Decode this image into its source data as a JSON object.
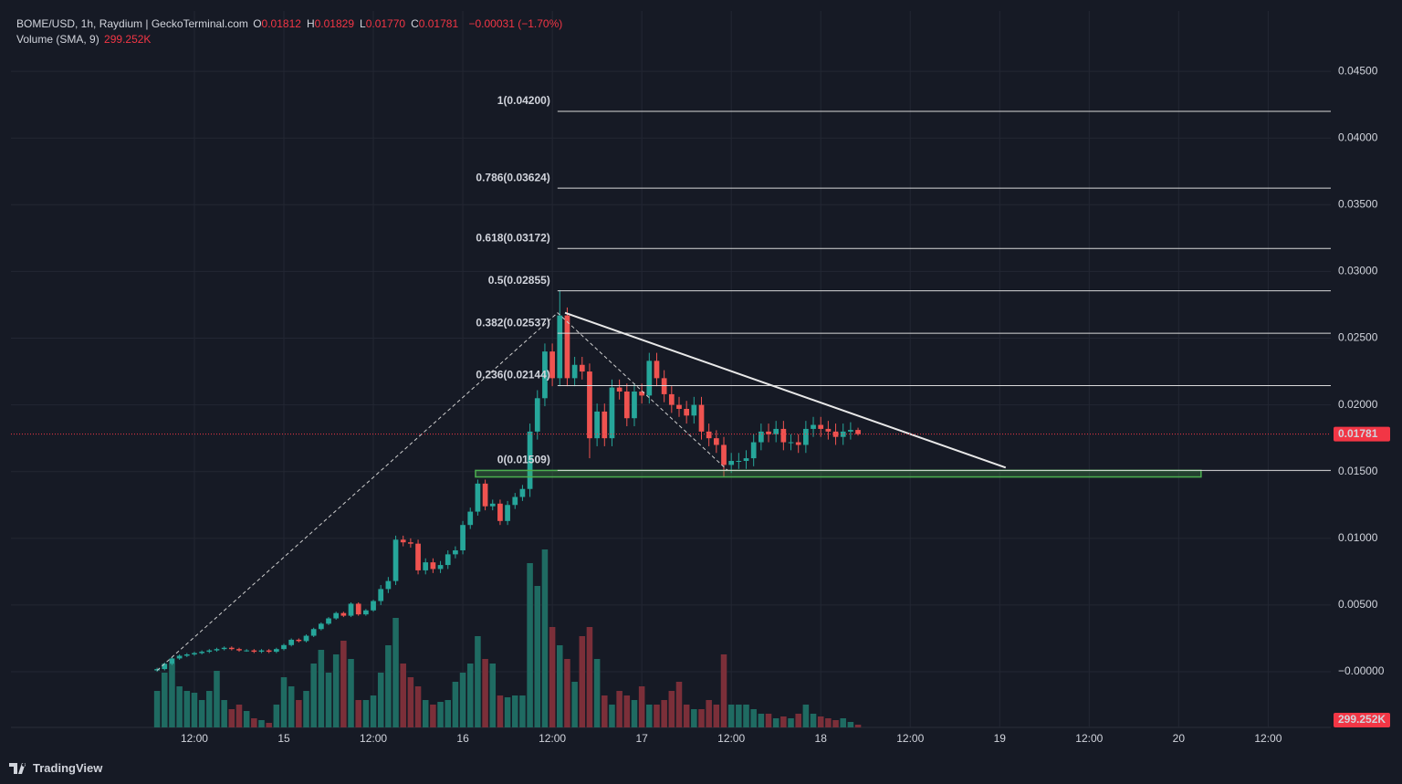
{
  "chart_data": {
    "type": "candlestick",
    "brand": "TradingView",
    "legend": {
      "symbol": "BOME/USD, 1h, Raydium | GeckoTerminal.com",
      "ohlc": [
        {
          "key": "O",
          "text": "0.01812"
        },
        {
          "key": "H",
          "text": "0.01829"
        },
        {
          "key": "L",
          "text": "0.01770"
        },
        {
          "key": "C",
          "text": "0.01781"
        }
      ],
      "change": "−0.00031 (−1.70%)",
      "volume_title": "Volume (SMA, 9)"
    },
    "volume_sma": {
      "value": 299252,
      "label": "299.252K"
    },
    "up_color": "#26a69a",
    "down_color": "#ef5350",
    "volume_up_color": "#1f6b62",
    "volume_down_color": "#7b2f39",
    "grid": true,
    "xlim": [
      -19.6,
      157.4
    ],
    "xticks": [
      {
        "value": 5,
        "label": "12:00"
      },
      {
        "value": 17,
        "label": "15"
      },
      {
        "value": 29,
        "label": "12:00"
      },
      {
        "value": 41,
        "label": "16"
      },
      {
        "value": 53,
        "label": "12:00"
      },
      {
        "value": 65,
        "label": "17"
      },
      {
        "value": 77,
        "label": "12:00"
      },
      {
        "value": 89,
        "label": "18"
      },
      {
        "value": 101,
        "label": "12:00"
      },
      {
        "value": 113,
        "label": "19"
      },
      {
        "value": 125,
        "label": "12:00"
      },
      {
        "value": 137,
        "label": "20"
      },
      {
        "value": 149,
        "label": "12:00"
      }
    ],
    "ylim": [
      -0.00417,
      0.04952
    ],
    "yticks": [
      {
        "value": 0.045,
        "label": "0.04500"
      },
      {
        "value": 0.04,
        "label": "0.04000"
      },
      {
        "value": 0.035,
        "label": "0.03500"
      },
      {
        "value": 0.03,
        "label": "0.03000"
      },
      {
        "value": 0.025,
        "label": "0.02500"
      },
      {
        "value": 0.02,
        "label": "0.02000"
      },
      {
        "value": 0.015,
        "label": "0.01500"
      },
      {
        "value": 0.01,
        "label": "0.01000"
      },
      {
        "value": 0.005,
        "label": "0.00500"
      },
      {
        "value": 0,
        "label": "−0.00000"
      }
    ],
    "open": [
      0.0001,
      0.0002,
      0.0006,
      0.001,
      0.0012,
      0.0013,
      0.0014,
      0.0015,
      0.0016,
      0.0017,
      0.0018,
      0.0017,
      0.0016,
      0.0016,
      0.0015,
      0.0016,
      0.0015,
      0.0017,
      0.002,
      0.0024,
      0.0023,
      0.0027,
      0.0032,
      0.0036,
      0.004,
      0.0044,
      0.0042,
      0.0051,
      0.0043,
      0.0046,
      0.0053,
      0.0062,
      0.0068,
      0.0099,
      0.0097,
      0.0096,
      0.0076,
      0.0082,
      0.0077,
      0.008,
      0.0088,
      0.0091,
      0.011,
      0.012,
      0.0141,
      0.0124,
      0.0126,
      0.0113,
      0.0125,
      0.0131,
      0.0137,
      0.018,
      0.0205,
      0.024,
      0.022,
      0.0267,
      0.022,
      0.023,
      0.0225,
      0.0175,
      0.0195,
      0.0175,
      0.0213,
      0.021,
      0.019,
      0.021,
      0.0207,
      0.0233,
      0.022,
      0.0208,
      0.02,
      0.0197,
      0.0192,
      0.02,
      0.018,
      0.0175,
      0.017,
      0.0155,
      0.0158,
      0.0158,
      0.016,
      0.0172,
      0.018,
      0.0178,
      0.0182,
      0.0172,
      0.0172,
      0.017,
      0.0182,
      0.0185,
      0.0182,
      0.018,
      0.0176,
      0.018,
      0.01812
    ],
    "high": [
      0.0003,
      0.0007,
      0.0011,
      0.0013,
      0.0014,
      0.0015,
      0.0016,
      0.0017,
      0.0018,
      0.0019,
      0.0019,
      0.0018,
      0.0017,
      0.0017,
      0.0017,
      0.0017,
      0.0018,
      0.0021,
      0.0025,
      0.0025,
      0.0028,
      0.0033,
      0.0037,
      0.0041,
      0.0045,
      0.0045,
      0.0052,
      0.0052,
      0.0047,
      0.0054,
      0.0065,
      0.0071,
      0.0102,
      0.0102,
      0.01,
      0.0099,
      0.0085,
      0.0085,
      0.0083,
      0.0091,
      0.0094,
      0.0113,
      0.0123,
      0.0144,
      0.0144,
      0.0129,
      0.0129,
      0.0128,
      0.0134,
      0.014,
      0.0186,
      0.0211,
      0.0246,
      0.0246,
      0.0286,
      0.0273,
      0.0236,
      0.0236,
      0.0231,
      0.0201,
      0.0201,
      0.0219,
      0.0219,
      0.0216,
      0.0216,
      0.0216,
      0.0239,
      0.0239,
      0.0226,
      0.0214,
      0.0206,
      0.0203,
      0.0206,
      0.0206,
      0.0186,
      0.0181,
      0.0176,
      0.0164,
      0.0164,
      0.0166,
      0.0178,
      0.0186,
      0.0186,
      0.0188,
      0.0188,
      0.0178,
      0.0178,
      0.0188,
      0.0191,
      0.0191,
      0.0188,
      0.0186,
      0.0186,
      0.0187,
      0.01829
    ],
    "low": [
      0,
      0.0001,
      0.0005,
      0.0009,
      0.0011,
      0.0012,
      0.0013,
      0.0014,
      0.0015,
      0.0016,
      0.0016,
      0.0015,
      0.0015,
      0.0014,
      0.0014,
      0.0014,
      0.0014,
      0.0016,
      0.0019,
      0.0022,
      0.0022,
      0.0026,
      0.0031,
      0.0035,
      0.0039,
      0.0041,
      0.0041,
      0.0042,
      0.0042,
      0.0045,
      0.005,
      0.0059,
      0.0065,
      0.0094,
      0.0093,
      0.0073,
      0.0073,
      0.0074,
      0.0074,
      0.0077,
      0.0085,
      0.0088,
      0.0107,
      0.0117,
      0.0121,
      0.0121,
      0.011,
      0.011,
      0.0122,
      0.0128,
      0.0131,
      0.0174,
      0.0199,
      0.0214,
      0.0214,
      0.0214,
      0.0214,
      0.0219,
      0.016,
      0.0169,
      0.0169,
      0.0169,
      0.0204,
      0.0184,
      0.0184,
      0.0201,
      0.0201,
      0.0214,
      0.0202,
      0.0194,
      0.0191,
      0.0186,
      0.0186,
      0.0174,
      0.0169,
      0.0164,
      0.0146,
      0.0149,
      0.0152,
      0.0152,
      0.0154,
      0.0166,
      0.0172,
      0.0172,
      0.0166,
      0.0166,
      0.0164,
      0.0164,
      0.0176,
      0.0176,
      0.0174,
      0.017,
      0.017,
      0.0174,
      0.0177
    ],
    "close": [
      0.0002,
      0.0006,
      0.001,
      0.0012,
      0.0013,
      0.0014,
      0.0015,
      0.0016,
      0.0017,
      0.0018,
      0.0017,
      0.0016,
      0.0016,
      0.0015,
      0.0016,
      0.0015,
      0.0017,
      0.002,
      0.0024,
      0.0023,
      0.0027,
      0.0032,
      0.0036,
      0.004,
      0.0044,
      0.0042,
      0.0051,
      0.0043,
      0.0046,
      0.0053,
      0.0062,
      0.0068,
      0.0099,
      0.0097,
      0.0096,
      0.0076,
      0.0082,
      0.0077,
      0.008,
      0.0088,
      0.0091,
      0.011,
      0.012,
      0.0141,
      0.0124,
      0.0126,
      0.0113,
      0.0125,
      0.0131,
      0.0137,
      0.018,
      0.0205,
      0.024,
      0.022,
      0.0267,
      0.022,
      0.023,
      0.0225,
      0.0175,
      0.0195,
      0.0175,
      0.0213,
      0.021,
      0.019,
      0.021,
      0.0207,
      0.0233,
      0.022,
      0.0208,
      0.02,
      0.0197,
      0.0192,
      0.02,
      0.018,
      0.0175,
      0.017,
      0.0155,
      0.0158,
      0.0158,
      0.016,
      0.0172,
      0.018,
      0.0178,
      0.0182,
      0.0172,
      0.0172,
      0.017,
      0.0182,
      0.0185,
      0.0182,
      0.018,
      0.0176,
      0.018,
      0.01812,
      0.01781
    ],
    "volume": [
      600000,
      900000,
      1050000,
      675000,
      600000,
      570000,
      450000,
      600000,
      930000,
      450000,
      300000,
      375000,
      270000,
      150000,
      120000,
      75000,
      375000,
      825000,
      675000,
      450000,
      600000,
      1050000,
      1275000,
      900000,
      1200000,
      1425000,
      1125000,
      450000,
      450000,
      525000,
      900000,
      1350000,
      1800000,
      1050000,
      825000,
      675000,
      450000,
      375000,
      420000,
      450000,
      750000,
      900000,
      1050000,
      1500000,
      1125000,
      1050000,
      525000,
      495000,
      525000,
      525000,
      2700000,
      2325000,
      2925000,
      1650000,
      1350000,
      1125000,
      750000,
      1500000,
      1650000,
      1125000,
      525000,
      375000,
      600000,
      525000,
      450000,
      675000,
      375000,
      375000,
      450000,
      600000,
      750000,
      375000,
      300000,
      300000,
      450000,
      375000,
      1200000,
      375000,
      375000,
      375000,
      300000,
      225000,
      225000,
      150000,
      180000,
      150000,
      225000,
      375000,
      225000,
      180000,
      150000,
      120000,
      150000,
      90000,
      45000
    ],
    "fib_levels": [
      {
        "label": "1(0.04200)",
        "value": 0.042
      },
      {
        "label": "0.786(0.03624)",
        "value": 0.03624
      },
      {
        "label": "0.618(0.03172)",
        "value": 0.03172
      },
      {
        "label": "0.5(0.02855)",
        "value": 0.02855
      },
      {
        "label": "0.382(0.02537)",
        "value": 0.02537
      },
      {
        "label": "0.236(0.02144)",
        "value": 0.02144
      },
      {
        "label": "0(0.01509)",
        "value": 0.01509
      }
    ],
    "fib_path": {
      "x": [
        0,
        53.7,
        76.5
      ],
      "y": [
        0.0001,
        0.0269,
        0.0151
      ]
    },
    "trend_line": {
      "x": [
        54.7,
        113.8
      ],
      "y": [
        0.0269,
        0.0153
      ]
    },
    "support_zone": {
      "x": [
        42.7,
        140
      ],
      "y": [
        0.0146,
        0.01509
      ]
    }
  }
}
